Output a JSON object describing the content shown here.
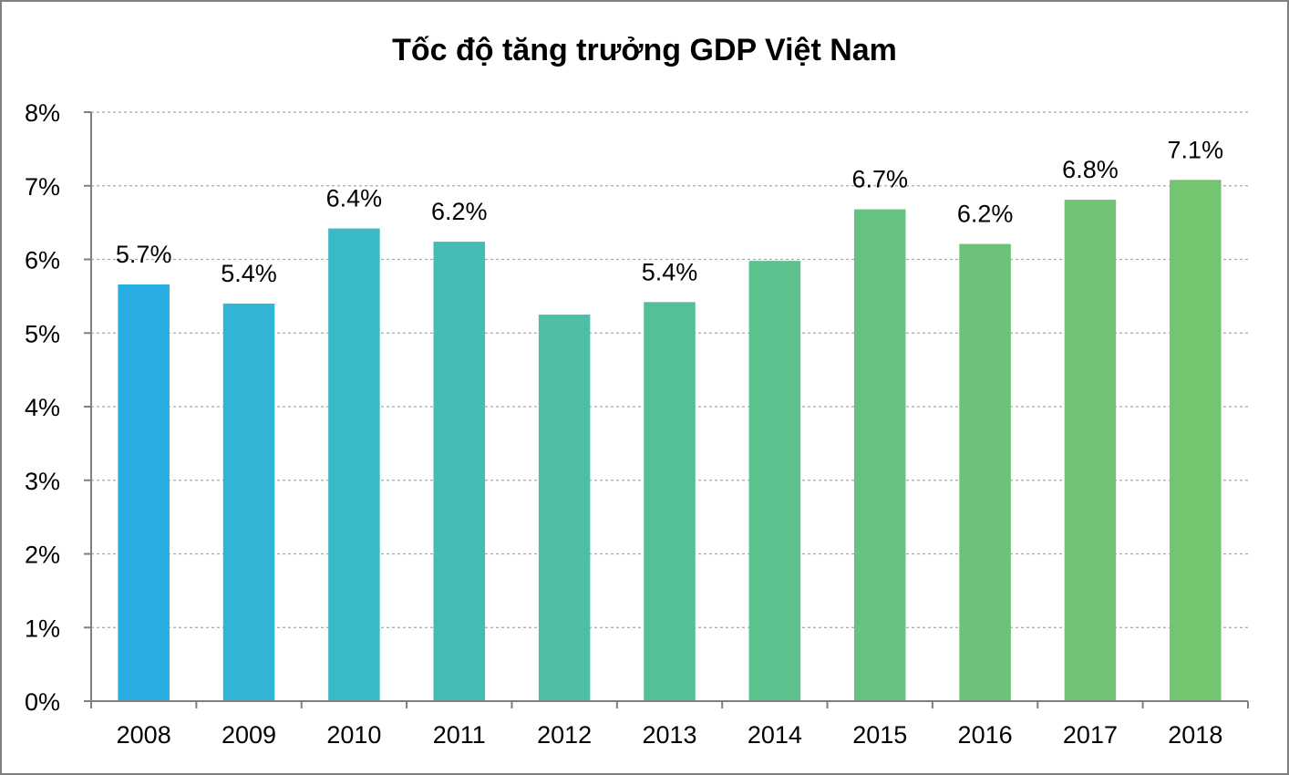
{
  "chart_data": {
    "type": "bar",
    "title": "Tốc độ tăng trưởng GDP Việt Nam",
    "xlabel": "",
    "ylabel": "",
    "categories": [
      "2008",
      "2009",
      "2010",
      "2011",
      "2012",
      "2013",
      "2014",
      "2015",
      "2016",
      "2017",
      "2018"
    ],
    "values": [
      5.66,
      5.4,
      6.42,
      6.24,
      5.25,
      5.42,
      5.98,
      6.68,
      6.21,
      6.81,
      7.08
    ],
    "data_labels": [
      "5.7%",
      "5.4%",
      "6.4%",
      "6.2%",
      "",
      "5.4%",
      "",
      "6.7%",
      "6.2%",
      "6.8%",
      "7.1%"
    ],
    "y_ticks": [
      "0%",
      "1%",
      "2%",
      "3%",
      "4%",
      "5%",
      "6%",
      "7%",
      "8%"
    ],
    "ylim": [
      0,
      8
    ],
    "grid": true,
    "grid_style": "dashed",
    "colors": [
      "#29aee3",
      "#31b4d6",
      "#3ab9c6",
      "#44bcb3",
      "#4ebfa6",
      "#55bf98",
      "#5dc18d",
      "#66c283",
      "#6dc27a",
      "#72c474",
      "#75c46f"
    ],
    "legend": "none"
  }
}
